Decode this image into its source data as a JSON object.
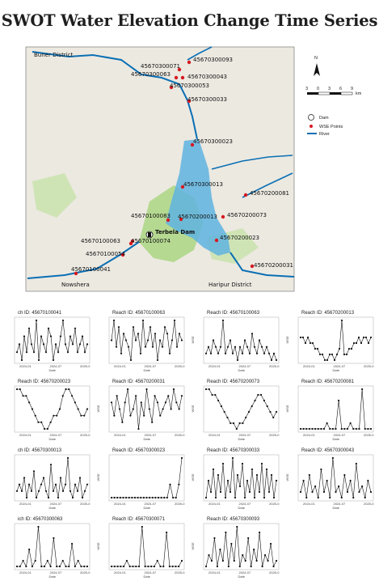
{
  "title": "SWOT Water Elevation Change Time Series",
  "map": {
    "legend": {
      "dam": "Dam",
      "points": "WSE Points",
      "river": "River"
    },
    "scale_ticks": [
      "3",
      "0",
      "3",
      "6",
      "9"
    ],
    "scale_unit": "km",
    "north": "N",
    "dam_label": "Terbela Dam",
    "place_labels": [
      "Buner District",
      "Haripur District",
      "Nowshera"
    ],
    "colors": {
      "river": "#0a6fb4",
      "lake": "#5fb3e0",
      "point": "#d71920",
      "green": "#b5d991",
      "land": "#ece9e1"
    },
    "points": [
      {
        "id": "45670300093"
      },
      {
        "id": "45670300071"
      },
      {
        "id": "45670300063"
      },
      {
        "id": "45670300043"
      },
      {
        "id": "45670300053"
      },
      {
        "id": "45670300033"
      },
      {
        "id": "45670300023"
      },
      {
        "id": "45670300013"
      },
      {
        "id": "45670200081"
      },
      {
        "id": "45670100083"
      },
      {
        "id": "45670200013"
      },
      {
        "id": "45670200073"
      },
      {
        "id": "45670100063"
      },
      {
        "id": "45670100074"
      },
      {
        "id": "45670200023"
      },
      {
        "id": "45670100054"
      },
      {
        "id": "45670200031"
      },
      {
        "id": "45670100041"
      }
    ]
  },
  "chart_data": [
    {
      "type": "line",
      "title": "ch ID: 45670100041",
      "xlabel": "Date",
      "ylabel": "",
      "x_ticks": [
        "2024-01",
        "2024-07",
        "2025-0"
      ],
      "values": [
        5,
        6,
        4,
        7,
        5,
        8,
        6,
        5,
        9,
        4,
        7,
        6,
        5,
        8,
        7,
        4,
        6,
        5,
        7,
        9,
        6,
        5,
        7,
        6,
        8,
        5,
        6,
        7,
        5,
        6
      ]
    },
    {
      "type": "line",
      "title": "Reach ID: 45670100063",
      "xlabel": "Date",
      "ylabel": "",
      "x_ticks": [
        "2024-01",
        "2024-07",
        "2025-0"
      ],
      "values": [
        6,
        9,
        5,
        8,
        4,
        7,
        6,
        5,
        3,
        8,
        6,
        7,
        4,
        9,
        5,
        6,
        8,
        5,
        7,
        3,
        6,
        5,
        8,
        7,
        4,
        6,
        9,
        5,
        7,
        6
      ]
    },
    {
      "type": "line",
      "title": "Reach ID: 45670100063",
      "xlabel": "Date",
      "ylabel": "WSE",
      "x_ticks": [
        "2024-01",
        "2024-07",
        "2025-0"
      ],
      "values": [
        4,
        5,
        4,
        6,
        5,
        4,
        5,
        9,
        4,
        5,
        6,
        4,
        5,
        3,
        5,
        4,
        6,
        5,
        4,
        7,
        5,
        4,
        6,
        5,
        4,
        5,
        4,
        3,
        4,
        3
      ]
    },
    {
      "type": "line",
      "title": "Reach ID: 45670200013",
      "xlabel": "Date",
      "ylabel": "WSE",
      "x_ticks": [
        "2024-01",
        "2024-07",
        "2025-0"
      ],
      "values": [
        6,
        6,
        5,
        6,
        5,
        5,
        4,
        4,
        3,
        3,
        2,
        2,
        3,
        3,
        2,
        3,
        4,
        9,
        3,
        3,
        4,
        4,
        5,
        5,
        6,
        5,
        6,
        6,
        5,
        6
      ]
    },
    {
      "type": "line",
      "title": "Reach ID: 45670200023",
      "xlabel": "Date",
      "ylabel": "",
      "x_ticks": [
        "2024-01",
        "2024-07",
        "2025-0"
      ],
      "values": [
        8,
        8,
        7,
        7,
        6,
        5,
        4,
        3,
        3,
        2,
        2,
        3,
        4,
        4,
        5,
        7,
        8,
        8,
        7,
        6,
        5,
        4,
        4,
        5
      ]
    },
    {
      "type": "line",
      "title": "Reach ID: 45670200031",
      "xlabel": "Date",
      "ylabel": "WSE",
      "x_ticks": [
        "2024-01",
        "2024-07",
        "2025-0"
      ],
      "values": [
        6,
        4,
        7,
        5,
        3,
        6,
        8,
        4,
        5,
        7,
        2,
        6,
        4,
        8,
        5,
        3,
        7,
        6,
        4,
        5,
        6,
        7,
        5,
        8,
        6,
        5,
        7
      ]
    },
    {
      "type": "line",
      "title": "Reach ID: 45670200073",
      "xlabel": "Date",
      "ylabel": "WSE",
      "x_ticks": [
        "2024-01",
        "2024-07",
        "2025-0"
      ],
      "values": [
        9,
        9,
        8,
        8,
        7,
        6,
        5,
        4,
        3,
        3,
        2,
        3,
        3,
        4,
        5,
        6,
        7,
        8,
        8,
        7,
        6,
        5,
        4,
        5
      ]
    },
    {
      "type": "line",
      "title": "Reach ID: 45670200081",
      "xlabel": "Date",
      "ylabel": "WSE",
      "x_ticks": [
        "2024-01",
        "2024-07",
        "2025-0"
      ],
      "values": [
        2,
        2,
        2,
        2,
        2,
        2,
        2,
        2,
        2,
        3,
        2,
        2,
        2,
        7,
        2,
        2,
        2,
        3,
        2,
        2,
        2,
        9,
        2,
        2,
        2
      ]
    },
    {
      "type": "line",
      "title": "ch ID: 45670300013",
      "xlabel": "Date",
      "ylabel": "",
      "x_ticks": [
        "2024-01",
        "2024-07",
        "2025-0"
      ],
      "values": [
        4,
        5,
        4,
        6,
        3,
        5,
        4,
        7,
        3,
        4,
        5,
        6,
        4,
        3,
        8,
        4,
        5,
        3,
        6,
        4,
        5,
        9,
        4,
        3,
        5,
        4,
        6,
        3,
        4,
        5
      ]
    },
    {
      "type": "line",
      "title": "Reach ID: 45670300023",
      "xlabel": "Date",
      "ylabel": "WSE",
      "x_ticks": [
        "2024-01",
        "2024-07",
        "2025-0"
      ],
      "values": [
        2,
        2,
        2,
        2,
        2,
        2,
        2,
        2,
        2,
        2,
        2,
        2,
        2,
        2,
        2,
        2,
        2,
        2,
        2,
        2,
        3,
        2,
        2,
        3,
        5
      ]
    },
    {
      "type": "line",
      "title": "Reach ID: 45670300033",
      "xlabel": "Date",
      "ylabel": "WSE",
      "x_ticks": [
        "2024-01",
        "2024-07",
        "2025-0"
      ],
      "values": [
        2,
        5,
        3,
        7,
        2,
        6,
        3,
        8,
        2,
        5,
        3,
        9,
        2,
        6,
        4,
        8,
        2,
        5,
        3,
        7,
        2,
        6,
        3,
        8,
        2,
        7,
        3,
        6,
        2,
        5
      ]
    },
    {
      "type": "line",
      "title": "Reach ID: 45670300043",
      "xlabel": "Date",
      "ylabel": "WSE",
      "x_ticks": [
        "2024-01",
        "2024-07",
        "2025-0"
      ],
      "values": [
        3,
        5,
        2,
        6,
        3,
        4,
        2,
        7,
        3,
        5,
        2,
        9,
        3,
        4,
        2,
        6,
        3,
        5,
        2,
        8,
        3,
        4,
        2,
        5,
        3
      ]
    },
    {
      "type": "line",
      "title": "ich ID: 45670300063",
      "xlabel": "Date",
      "ylabel": "",
      "x_ticks": [
        "2024-01",
        "2024-07",
        "2025-0"
      ],
      "values": [
        2,
        2,
        3,
        2,
        5,
        2,
        3,
        9,
        2,
        2,
        3,
        2,
        7,
        2,
        2,
        3,
        2,
        2,
        6,
        2,
        3,
        2,
        2,
        2
      ]
    },
    {
      "type": "line",
      "title": "Reach ID: 45670300071",
      "xlabel": "Date",
      "ylabel": "WSE",
      "x_ticks": [
        "2024-01",
        "2024-07",
        "2025-0"
      ],
      "values": [
        2,
        2,
        2,
        2,
        2,
        3,
        2,
        2,
        2,
        2,
        9,
        2,
        2,
        2,
        2,
        3,
        2,
        2,
        8,
        2,
        2,
        2,
        2,
        3
      ]
    },
    {
      "type": "line",
      "title": "Reach ID: 45670300093",
      "xlabel": "Date",
      "ylabel": "WSE",
      "x_ticks": [
        "2024-01",
        "2024-07",
        "2025-0"
      ],
      "values": [
        2,
        4,
        3,
        7,
        2,
        5,
        3,
        8,
        2,
        6,
        3,
        9,
        2,
        4,
        3,
        7,
        2,
        5,
        3,
        8,
        2,
        4,
        3,
        6,
        2,
        3
      ]
    }
  ]
}
